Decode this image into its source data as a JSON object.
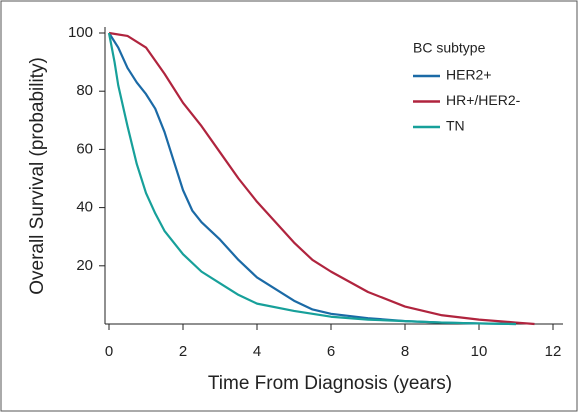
{
  "chart_data": {
    "type": "line",
    "x_label": "Time From Diagnosis (years)",
    "y_label": "Overall Survival (probability)",
    "legend_title": "BC subtype",
    "legend": "top-right",
    "xlim": [
      0,
      12
    ],
    "ylim": [
      0,
      100
    ],
    "xticks": [
      0,
      2,
      4,
      6,
      8,
      10,
      12
    ],
    "yticks": [
      20,
      40,
      60,
      80,
      100
    ],
    "series": [
      {
        "name": "HER2+",
        "color": "#1b6aa6",
        "x": [
          0,
          0.25,
          0.5,
          0.75,
          1,
          1.25,
          1.5,
          1.75,
          2,
          2.25,
          2.5,
          3,
          3.5,
          4,
          4.5,
          5,
          5.5,
          6,
          7,
          8,
          9,
          10,
          11
        ],
        "values": [
          100,
          95,
          88,
          83,
          79,
          74,
          66,
          56,
          46,
          39,
          35,
          29,
          22,
          16,
          12,
          8,
          5,
          3.5,
          2,
          1,
          0.5,
          0.2,
          0
        ]
      },
      {
        "name": "HR+/HER2-",
        "color": "#b0243e",
        "x": [
          0,
          0.5,
          1,
          1.5,
          2,
          2.5,
          3,
          3.5,
          4,
          4.5,
          5,
          5.5,
          6,
          7,
          8,
          9,
          10,
          11,
          11.5
        ],
        "values": [
          100,
          99,
          95,
          86,
          76,
          68,
          59,
          50,
          42,
          35,
          28,
          22,
          18,
          11,
          6,
          3,
          1.5,
          0.5,
          0
        ]
      },
      {
        "name": "TN",
        "color": "#17a09a",
        "x": [
          0,
          0.15,
          0.25,
          0.5,
          0.75,
          1,
          1.25,
          1.5,
          2,
          2.5,
          3,
          3.5,
          4,
          5,
          6,
          7,
          8,
          9,
          10,
          11
        ],
        "values": [
          100,
          90,
          82,
          68,
          55,
          45,
          38,
          32,
          24,
          18,
          14,
          10,
          7,
          4.5,
          2.5,
          1.5,
          1,
          0.5,
          0.2,
          0
        ]
      }
    ]
  }
}
